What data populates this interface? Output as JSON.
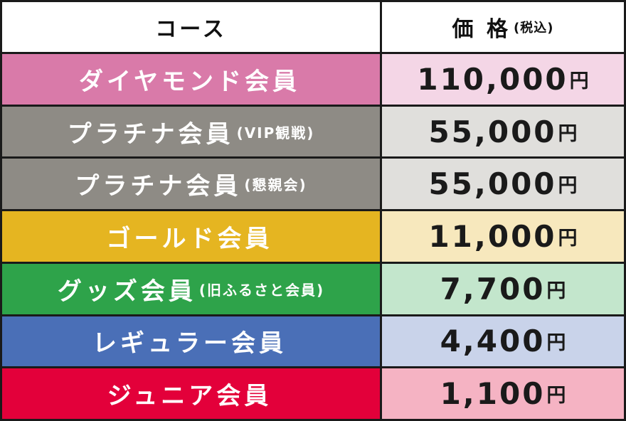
{
  "header": {
    "course": "コース",
    "price": "価 格",
    "price_note": "(税込)"
  },
  "rows": [
    {
      "name": "ダイヤモンド会員",
      "sub": "",
      "price": "110,000",
      "unit": "円",
      "color": "#d97aa9",
      "price_bg": "#f4d6e6"
    },
    {
      "name": "プラチナ会員",
      "sub": "(VIP観戦)",
      "price": "55,000",
      "unit": "円",
      "color": "#8e8b85",
      "price_bg": "#e0dfdc"
    },
    {
      "name": "プラチナ会員",
      "sub": "(懇親会)",
      "price": "55,000",
      "unit": "円",
      "color": "#8e8b85",
      "price_bg": "#e0dfdc"
    },
    {
      "name": "ゴールド会員",
      "sub": "",
      "price": "11,000",
      "unit": "円",
      "color": "#e5b521",
      "price_bg": "#f7e8bd"
    },
    {
      "name": "グッズ会員",
      "sub": "(旧ふるさと会員)",
      "price": "7,700",
      "unit": "円",
      "color": "#2ea34a",
      "price_bg": "#c3e6cc"
    },
    {
      "name": "レギュラー会員",
      "sub": "",
      "price": "4,400",
      "unit": "円",
      "color": "#4a6fb7",
      "price_bg": "#c9d3ea"
    },
    {
      "name": "ジュニア会員",
      "sub": "",
      "price": "1,100",
      "unit": "円",
      "color": "#e3003a",
      "price_bg": "#f5b3c3"
    }
  ]
}
